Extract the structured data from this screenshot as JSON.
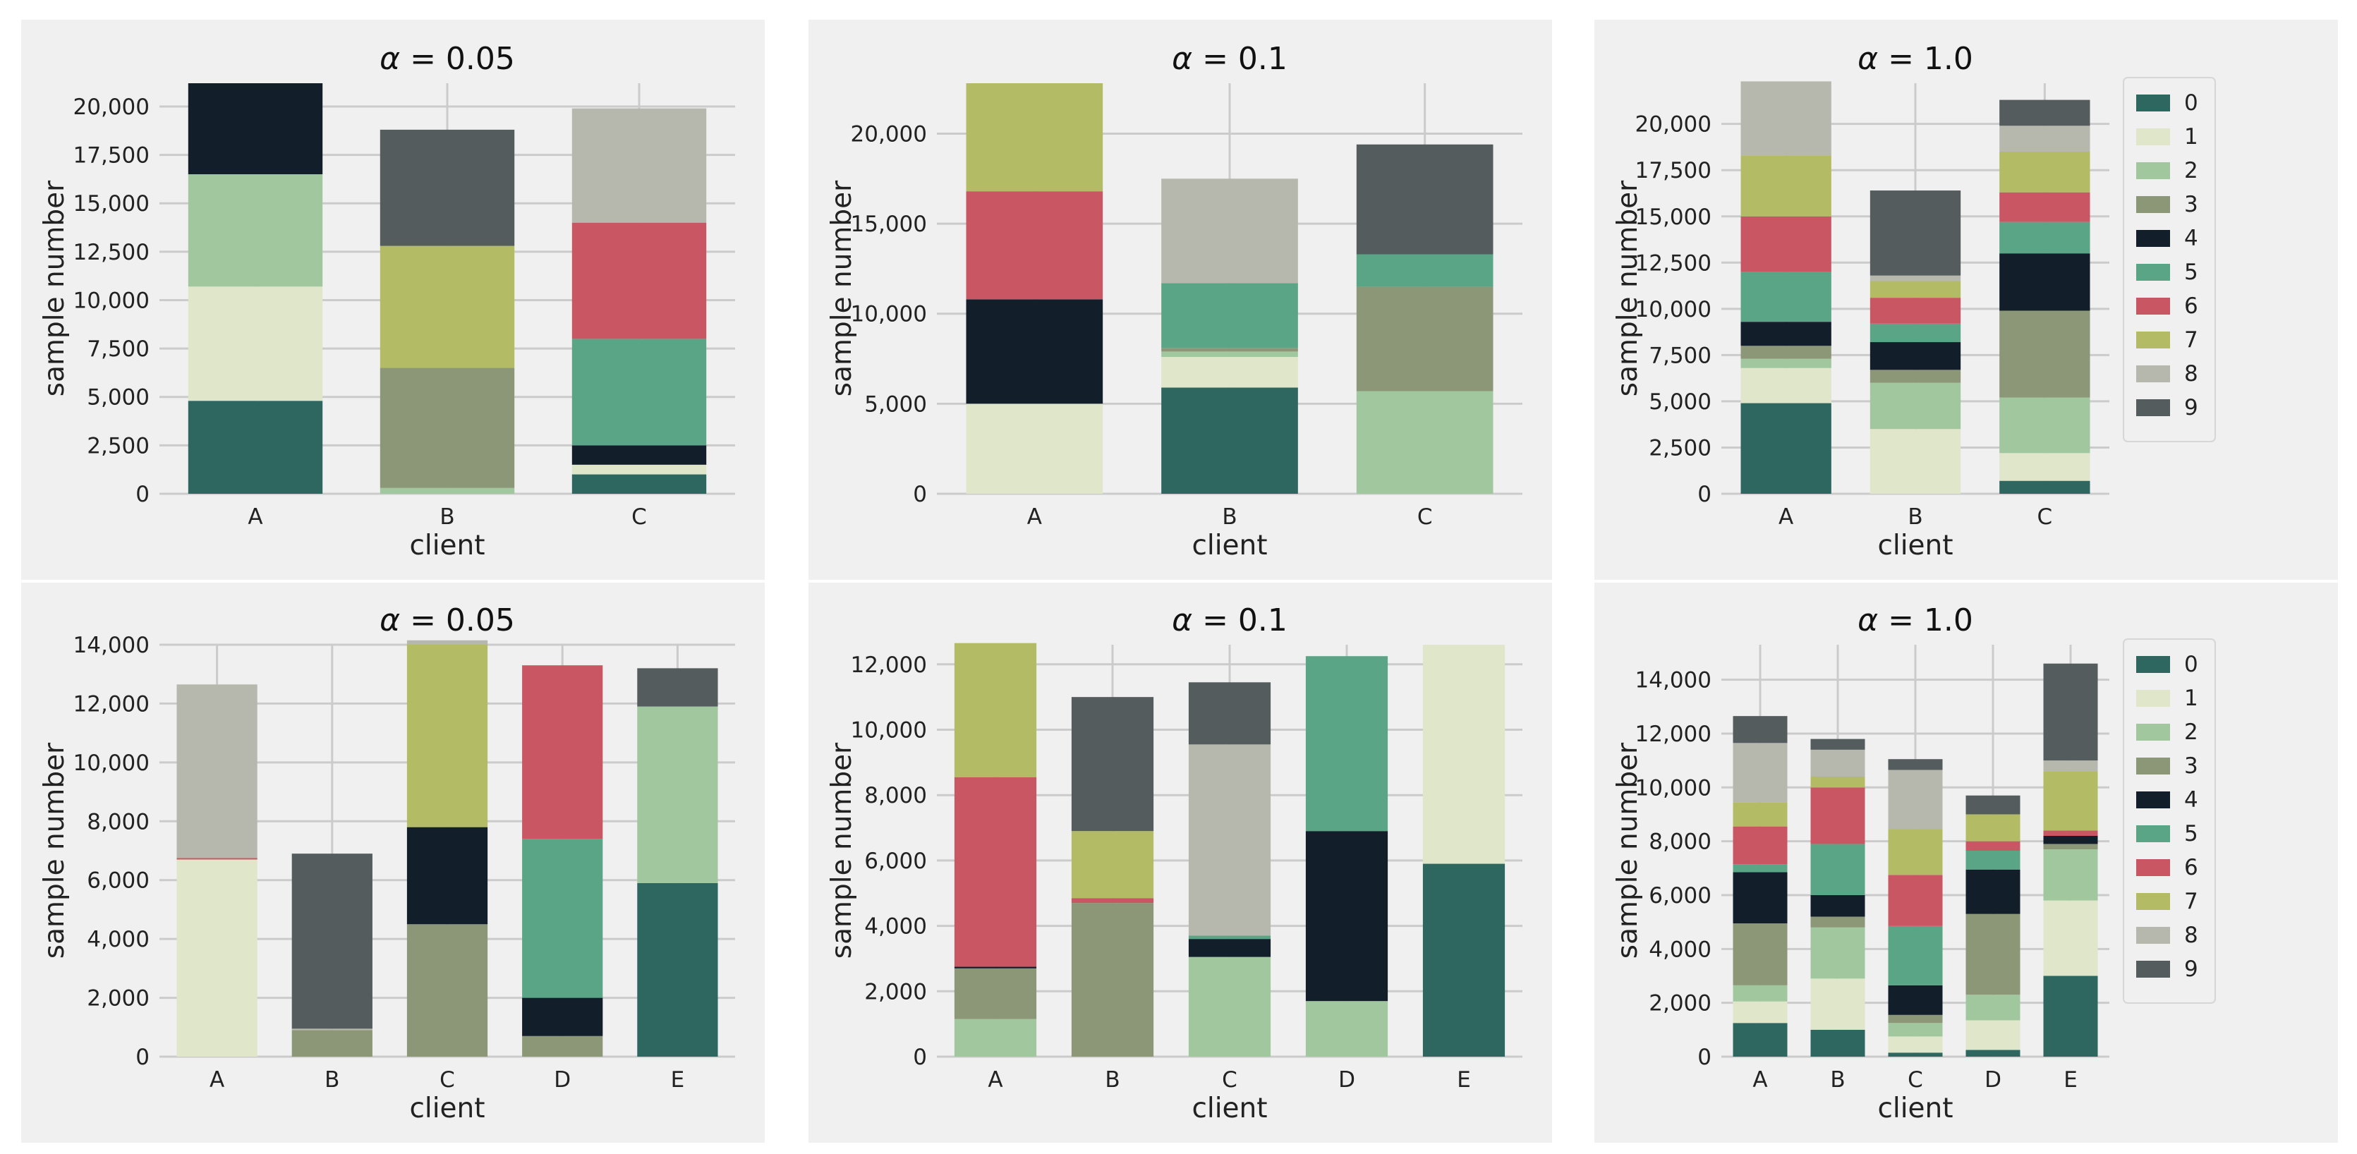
{
  "figure": {
    "background": "#f0f0f0",
    "palette": [
      "#2e6660",
      "#dfe6c9",
      "#a0c79e",
      "#8c9778",
      "#121f2b",
      "#5aa585",
      "#c95763",
      "#b3bb65",
      "#b7b8ad",
      "#545c5e"
    ]
  },
  "chart_data": [
    {
      "type": "bar",
      "stacked": true,
      "title_symbol": "α",
      "title_rest": " = 0.05",
      "xlabel": "client",
      "ylabel": "sample number",
      "categories": [
        "A",
        "B",
        "C"
      ],
      "ylim": [
        0,
        21200
      ],
      "yticks": [
        0,
        2500,
        5000,
        7500,
        10000,
        12500,
        15000,
        17500,
        20000
      ],
      "ytick_labels": [
        "0",
        "2,500",
        "5,000",
        "7,500",
        "10,000",
        "12,500",
        "15,000",
        "17,500",
        "20,000"
      ],
      "legend": false,
      "series": [
        {
          "name": "0",
          "values": [
            4800,
            0,
            1000
          ]
        },
        {
          "name": "1",
          "values": [
            5900,
            0,
            500
          ]
        },
        {
          "name": "2",
          "values": [
            5800,
            300,
            0
          ]
        },
        {
          "name": "3",
          "values": [
            0,
            6200,
            0
          ]
        },
        {
          "name": "4",
          "values": [
            4700,
            0,
            1000
          ]
        },
        {
          "name": "5",
          "values": [
            0,
            0,
            5500
          ]
        },
        {
          "name": "6",
          "values": [
            0,
            0,
            6000
          ]
        },
        {
          "name": "7",
          "values": [
            0,
            6300,
            0
          ]
        },
        {
          "name": "8",
          "values": [
            0,
            0,
            5900
          ]
        },
        {
          "name": "9",
          "values": [
            0,
            6000,
            0
          ]
        }
      ]
    },
    {
      "type": "bar",
      "stacked": true,
      "title_symbol": "α",
      "title_rest": " = 0.1",
      "xlabel": "client",
      "ylabel": "sample number",
      "categories": [
        "A",
        "B",
        "C"
      ],
      "ylim": [
        0,
        22800
      ],
      "yticks": [
        0,
        5000,
        10000,
        15000,
        20000
      ],
      "ytick_labels": [
        "0",
        "5,000",
        "10,000",
        "15,000",
        "20,000"
      ],
      "legend": false,
      "series": [
        {
          "name": "0",
          "values": [
            0,
            5900,
            0
          ]
        },
        {
          "name": "1",
          "values": [
            5000,
            1700,
            0
          ]
        },
        {
          "name": "2",
          "values": [
            0,
            300,
            5700
          ]
        },
        {
          "name": "3",
          "values": [
            0,
            200,
            5800
          ]
        },
        {
          "name": "4",
          "values": [
            5800,
            0,
            0
          ]
        },
        {
          "name": "5",
          "values": [
            0,
            3600,
            1800
          ]
        },
        {
          "name": "6",
          "values": [
            6000,
            0,
            0
          ]
        },
        {
          "name": "7",
          "values": [
            6000,
            0,
            0
          ]
        },
        {
          "name": "8",
          "values": [
            0,
            5800,
            0
          ]
        },
        {
          "name": "9",
          "values": [
            0,
            0,
            6100
          ]
        }
      ]
    },
    {
      "type": "bar",
      "stacked": true,
      "title_symbol": "α",
      "title_rest": " = 1.0",
      "xlabel": "client",
      "ylabel": "sample number",
      "categories": [
        "A",
        "B",
        "C"
      ],
      "ylim": [
        0,
        22200
      ],
      "yticks": [
        0,
        2500,
        5000,
        7500,
        10000,
        12500,
        15000,
        17500,
        20000
      ],
      "ytick_labels": [
        "0",
        "2,500",
        "5,000",
        "7,500",
        "10,000",
        "12,500",
        "15,000",
        "17,500",
        "20,000"
      ],
      "legend": true,
      "series": [
        {
          "name": "0",
          "values": [
            4900,
            0,
            700
          ]
        },
        {
          "name": "1",
          "values": [
            1900,
            3500,
            1500
          ]
        },
        {
          "name": "2",
          "values": [
            500,
            2500,
            3000
          ]
        },
        {
          "name": "3",
          "values": [
            700,
            700,
            4700
          ]
        },
        {
          "name": "4",
          "values": [
            1300,
            1500,
            3100
          ]
        },
        {
          "name": "5",
          "values": [
            2700,
            1000,
            1700
          ]
        },
        {
          "name": "6",
          "values": [
            3000,
            1400,
            1600
          ]
        },
        {
          "name": "7",
          "values": [
            3300,
            900,
            2200
          ]
        },
        {
          "name": "8",
          "values": [
            4000,
            300,
            1400
          ]
        },
        {
          "name": "9",
          "values": [
            0,
            4600,
            1400
          ]
        }
      ]
    },
    {
      "type": "bar",
      "stacked": true,
      "title_symbol": "α",
      "title_rest": " = 0.05",
      "xlabel": "client",
      "ylabel": "sample number",
      "categories": [
        "A",
        "B",
        "C",
        "D",
        "E"
      ],
      "ylim": [
        0,
        14000
      ],
      "yticks": [
        0,
        2000,
        4000,
        6000,
        8000,
        10000,
        12000,
        14000
      ],
      "ytick_labels": [
        "0",
        "2,000",
        "4,000",
        "6,000",
        "8,000",
        "10,000",
        "12,000",
        "14,000"
      ],
      "legend": false,
      "series": [
        {
          "name": "0",
          "values": [
            0,
            0,
            0,
            0,
            5900
          ]
        },
        {
          "name": "1",
          "values": [
            6700,
            0,
            0,
            0,
            0
          ]
        },
        {
          "name": "2",
          "values": [
            0,
            0,
            0,
            0,
            6000
          ]
        },
        {
          "name": "3",
          "values": [
            0,
            900,
            4500,
            700,
            0
          ]
        },
        {
          "name": "4",
          "values": [
            0,
            0,
            3300,
            1300,
            0
          ]
        },
        {
          "name": "5",
          "values": [
            0,
            0,
            0,
            5400,
            0
          ]
        },
        {
          "name": "6",
          "values": [
            50,
            0,
            0,
            5900,
            0
          ]
        },
        {
          "name": "7",
          "values": [
            0,
            0,
            6200,
            0,
            0
          ]
        },
        {
          "name": "8",
          "values": [
            5900,
            50,
            150,
            0,
            0
          ]
        },
        {
          "name": "9",
          "values": [
            0,
            5950,
            0,
            0,
            1300
          ]
        }
      ]
    },
    {
      "type": "bar",
      "stacked": true,
      "title_symbol": "α",
      "title_rest": " = 0.1",
      "xlabel": "client",
      "ylabel": "sample number",
      "categories": [
        "A",
        "B",
        "C",
        "D",
        "E"
      ],
      "ylim": [
        0,
        12600
      ],
      "yticks": [
        0,
        2000,
        4000,
        6000,
        8000,
        10000,
        12000
      ],
      "ytick_labels": [
        "0",
        "2,000",
        "4,000",
        "6,000",
        "8,000",
        "10,000",
        "12,000"
      ],
      "legend": false,
      "series": [
        {
          "name": "0",
          "values": [
            0,
            0,
            0,
            0,
            5900
          ]
        },
        {
          "name": "1",
          "values": [
            0,
            0,
            0,
            0,
            6700
          ]
        },
        {
          "name": "2",
          "values": [
            1150,
            0,
            3050,
            1700,
            0
          ]
        },
        {
          "name": "3",
          "values": [
            1550,
            4700,
            0,
            0,
            0
          ]
        },
        {
          "name": "4",
          "values": [
            50,
            0,
            550,
            5200,
            0
          ]
        },
        {
          "name": "5",
          "values": [
            0,
            0,
            100,
            5350,
            0
          ]
        },
        {
          "name": "6",
          "values": [
            5800,
            150,
            0,
            0,
            0
          ]
        },
        {
          "name": "7",
          "values": [
            4100,
            2050,
            0,
            0,
            0
          ]
        },
        {
          "name": "8",
          "values": [
            0,
            0,
            5850,
            0,
            0
          ]
        },
        {
          "name": "9",
          "values": [
            0,
            4100,
            1900,
            0,
            0
          ]
        }
      ]
    },
    {
      "type": "bar",
      "stacked": true,
      "title_symbol": "α",
      "title_rest": " = 1.0",
      "xlabel": "client",
      "ylabel": "sample number",
      "categories": [
        "A",
        "B",
        "C",
        "D",
        "E"
      ],
      "ylim": [
        0,
        15300
      ],
      "yticks": [
        0,
        2000,
        4000,
        6000,
        8000,
        10000,
        12000,
        14000
      ],
      "ytick_labels": [
        "0",
        "2,000",
        "4,000",
        "6,000",
        "8,000",
        "10,000",
        "12,000",
        "14,000"
      ],
      "legend": true,
      "series": [
        {
          "name": "0",
          "values": [
            1250,
            1000,
            150,
            250,
            3000
          ]
        },
        {
          "name": "1",
          "values": [
            800,
            1900,
            600,
            1100,
            2800
          ]
        },
        {
          "name": "2",
          "values": [
            600,
            1900,
            500,
            950,
            1900
          ]
        },
        {
          "name": "3",
          "values": [
            2300,
            400,
            300,
            3000,
            200
          ]
        },
        {
          "name": "4",
          "values": [
            1900,
            800,
            1100,
            1650,
            300
          ]
        },
        {
          "name": "5",
          "values": [
            300,
            1900,
            2200,
            700,
            0
          ]
        },
        {
          "name": "6",
          "values": [
            1400,
            2100,
            1900,
            350,
            200
          ]
        },
        {
          "name": "7",
          "values": [
            900,
            400,
            1700,
            1000,
            2200
          ]
        },
        {
          "name": "8",
          "values": [
            2200,
            1000,
            2200,
            0,
            400
          ]
        },
        {
          "name": "9",
          "values": [
            1000,
            400,
            400,
            700,
            3600
          ]
        }
      ]
    }
  ]
}
